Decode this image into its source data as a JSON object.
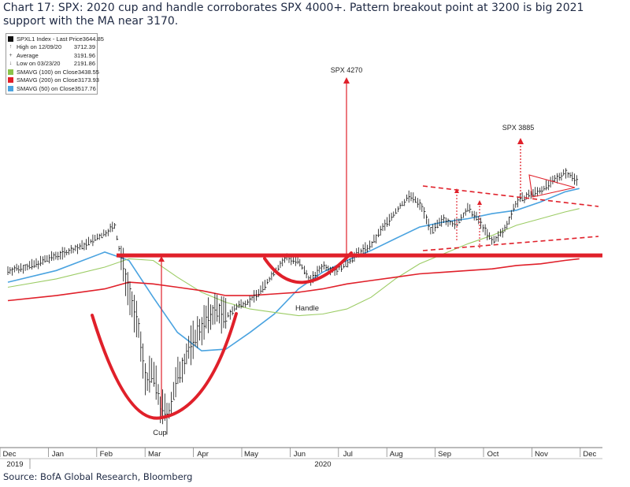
{
  "title": "Chart 17: SPX: 2020 cup and handle corroborates SPX 4000+. Pattern breakout point at 3200 is big 2021 support with the MA near 3170.",
  "source": "Source: BofA Global Research, Bloomberg",
  "colors": {
    "price": "#111111",
    "sma50": "#4aa3e0",
    "sma100": "#9ccc65",
    "sma200": "#e0202a",
    "annotation": "#e0202a"
  },
  "legend": [
    {
      "name": "SPXL1 Index - Last Price",
      "value": "3644.85",
      "swatch": "black"
    },
    {
      "name": "High on 12/09/20",
      "value": "3712.39",
      "swatch": "mark",
      "mark": "↑"
    },
    {
      "name": "Average",
      "value": "3191.96",
      "swatch": "mark",
      "mark": "+"
    },
    {
      "name": "Low on 03/23/20",
      "value": "2191.86",
      "swatch": "mark",
      "mark": "↓"
    },
    {
      "name": "SMAVG (100)  on Close",
      "value": "3438.55",
      "swatch": "green"
    },
    {
      "name": "SMAVG (200)  on Close",
      "value": "3173.93",
      "swatch": "red"
    },
    {
      "name": "SMAVG (50)  on Close",
      "value": "3517.76",
      "swatch": "blue"
    }
  ],
  "chart_data": {
    "type": "line",
    "x_axis": {
      "tick_labels": [
        "Dec",
        "Jan",
        "Feb",
        "Mar",
        "Apr",
        "May",
        "Jun",
        "Jul",
        "Aug",
        "Sep",
        "Oct",
        "Nov",
        "Dec"
      ],
      "year_labels": [
        "2019",
        "2020"
      ]
    },
    "ylim": [
      2150,
      3800
    ],
    "grid": false,
    "legend_position": "top-left",
    "series": [
      {
        "name": "SPXL1 Index - Last Price",
        "points": [
          [
            0.0,
            3110
          ],
          [
            0.5,
            3140
          ],
          [
            1.0,
            3200
          ],
          [
            1.5,
            3250
          ],
          [
            2.0,
            3330
          ],
          [
            2.2,
            3380
          ],
          [
            2.3,
            3230
          ],
          [
            2.5,
            2990
          ],
          [
            2.7,
            2750
          ],
          [
            2.85,
            2450
          ],
          [
            3.0,
            2500
          ],
          [
            3.15,
            2300
          ],
          [
            3.3,
            2240
          ],
          [
            3.5,
            2470
          ],
          [
            3.75,
            2650
          ],
          [
            4.0,
            2780
          ],
          [
            4.3,
            2880
          ],
          [
            4.5,
            2830
          ],
          [
            4.75,
            2900
          ],
          [
            5.0,
            2930
          ],
          [
            5.25,
            3000
          ],
          [
            5.5,
            3100
          ],
          [
            5.75,
            3190
          ],
          [
            6.0,
            3160
          ],
          [
            6.25,
            3050
          ],
          [
            6.5,
            3140
          ],
          [
            6.75,
            3110
          ],
          [
            7.0,
            3150
          ],
          [
            7.25,
            3220
          ],
          [
            7.5,
            3260
          ],
          [
            7.75,
            3370
          ],
          [
            8.0,
            3460
          ],
          [
            8.3,
            3560
          ],
          [
            8.55,
            3490
          ],
          [
            8.75,
            3340
          ],
          [
            9.0,
            3420
          ],
          [
            9.25,
            3380
          ],
          [
            9.5,
            3480
          ],
          [
            9.75,
            3400
          ],
          [
            10.0,
            3280
          ],
          [
            10.25,
            3350
          ],
          [
            10.5,
            3520
          ],
          [
            10.75,
            3560
          ],
          [
            11.0,
            3590
          ],
          [
            11.25,
            3640
          ],
          [
            11.5,
            3700
          ],
          [
            11.75,
            3650
          ]
        ]
      },
      {
        "name": "SMAVG (50)  on Close",
        "points": [
          [
            0.0,
            3040
          ],
          [
            1.0,
            3110
          ],
          [
            2.0,
            3220
          ],
          [
            2.5,
            3170
          ],
          [
            3.0,
            2950
          ],
          [
            3.5,
            2740
          ],
          [
            4.0,
            2630
          ],
          [
            4.5,
            2640
          ],
          [
            5.0,
            2740
          ],
          [
            5.5,
            2850
          ],
          [
            6.0,
            3000
          ],
          [
            6.5,
            3100
          ],
          [
            7.0,
            3170
          ],
          [
            7.5,
            3230
          ],
          [
            8.0,
            3300
          ],
          [
            8.5,
            3370
          ],
          [
            9.0,
            3400
          ],
          [
            9.5,
            3420
          ],
          [
            10.0,
            3450
          ],
          [
            10.5,
            3470
          ],
          [
            11.0,
            3520
          ],
          [
            11.5,
            3580
          ],
          [
            11.8,
            3600
          ]
        ]
      },
      {
        "name": "SMAVG (100)  on Close",
        "points": [
          [
            0.0,
            3010
          ],
          [
            1.0,
            3060
          ],
          [
            2.0,
            3130
          ],
          [
            2.5,
            3180
          ],
          [
            3.0,
            3170
          ],
          [
            3.5,
            3070
          ],
          [
            4.0,
            2980
          ],
          [
            4.5,
            2920
          ],
          [
            5.0,
            2880
          ],
          [
            5.5,
            2860
          ],
          [
            6.0,
            2840
          ],
          [
            6.5,
            2850
          ],
          [
            7.0,
            2880
          ],
          [
            7.5,
            2950
          ],
          [
            8.0,
            3060
          ],
          [
            8.5,
            3150
          ],
          [
            9.0,
            3210
          ],
          [
            9.5,
            3270
          ],
          [
            10.0,
            3320
          ],
          [
            10.5,
            3380
          ],
          [
            11.0,
            3420
          ],
          [
            11.5,
            3460
          ],
          [
            11.8,
            3480
          ]
        ]
      },
      {
        "name": "SMAVG (200)  on Close",
        "points": [
          [
            0.0,
            2930
          ],
          [
            1.0,
            2960
          ],
          [
            2.0,
            3000
          ],
          [
            2.5,
            3040
          ],
          [
            3.0,
            3030
          ],
          [
            3.5,
            3010
          ],
          [
            4.0,
            2990
          ],
          [
            4.5,
            2960
          ],
          [
            5.0,
            2960
          ],
          [
            5.5,
            2970
          ],
          [
            6.0,
            2980
          ],
          [
            6.5,
            3000
          ],
          [
            7.0,
            3030
          ],
          [
            7.5,
            3050
          ],
          [
            8.0,
            3070
          ],
          [
            8.5,
            3090
          ],
          [
            9.0,
            3100
          ],
          [
            9.5,
            3110
          ],
          [
            10.0,
            3120
          ],
          [
            10.5,
            3140
          ],
          [
            11.0,
            3150
          ],
          [
            11.5,
            3170
          ],
          [
            11.8,
            3180
          ]
        ]
      }
    ],
    "annotations": {
      "breakout_level": 3200,
      "cup_label": "Cup",
      "handle_label": "Handle",
      "target1_label": "SPX 4270",
      "target1_value": 4270,
      "target2_label": "SPX 3885",
      "target2_value": 3885
    }
  }
}
